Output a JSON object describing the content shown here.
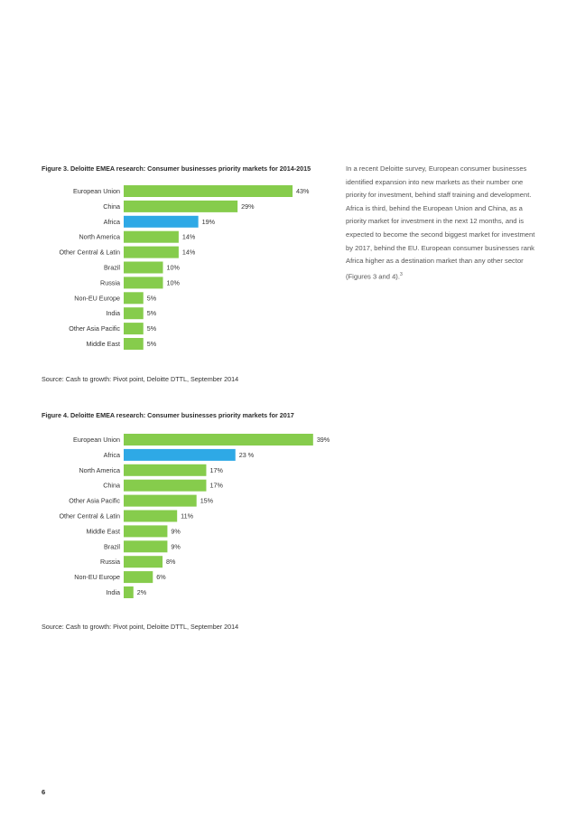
{
  "fig3": {
    "title": "Figure 3. Deloitte EMEA research: Consumer businesses priority markets for 2014-2015",
    "source": "Source: Cash to growth: Pivot point, Deloitte DTTL, September 2014"
  },
  "fig4": {
    "title": "Figure 4. Deloitte EMEA research: Consumer businesses priority markets for 2017",
    "source": "Source: Cash to growth: Pivot point, Deloitte DTTL, September 2014"
  },
  "body": {
    "paragraph": "In a recent Deloitte survey, European consumer businesses identified expansion into new markets as their number one priority for investment, behind staff training and development. Africa is third, behind the European Union and China, as a priority market for investment in the next 12 months, and is expected to become the second biggest market for investment by 2017, behind the EU. European consumer businesses rank Africa higher as a destination market than any other sector (Figures 3 and 4).",
    "footnote_ref": "3"
  },
  "page_number": "6",
  "colors": {
    "default_bar": "#86cc4c",
    "highlight_bar": "#2ea9e6"
  },
  "chart_data": [
    {
      "type": "bar",
      "orientation": "horizontal",
      "title": "Figure 3. Deloitte EMEA research: Consumer businesses priority markets for 2014-2015",
      "categories": [
        "European Union",
        "China",
        "Africa",
        "North America",
        "Other Central & Latin",
        "Brazil",
        "Russia",
        "Non-EU Europe",
        "India",
        "Other Asia Pacific",
        "Middle East"
      ],
      "values": [
        43,
        29,
        19,
        14,
        14,
        10,
        10,
        5,
        5,
        5,
        5
      ],
      "labels": [
        "43%",
        "29%",
        "19%",
        "14%",
        "14%",
        "10%",
        "10%",
        "5%",
        "5%",
        "5%",
        "5%"
      ],
      "highlight": "Africa",
      "xlim": [
        0,
        43
      ]
    },
    {
      "type": "bar",
      "orientation": "horizontal",
      "title": "Figure 4. Deloitte EMEA research: Consumer businesses priority markets for 2017",
      "categories": [
        "European Union",
        "Africa",
        "North America",
        "China",
        "Other Asia Pacific",
        "Other Central & Latin",
        "Middle East",
        "Brazil",
        "Russia",
        "Non-EU Europe",
        "India"
      ],
      "values": [
        39,
        23,
        17,
        17,
        15,
        11,
        9,
        9,
        8,
        6,
        2
      ],
      "labels": [
        "39%",
        "23 %",
        "17%",
        "17%",
        "15%",
        "11%",
        "9%",
        "9%",
        "8%",
        "6%",
        "2%"
      ],
      "highlight": "Africa",
      "xlim": [
        0,
        39
      ]
    }
  ]
}
